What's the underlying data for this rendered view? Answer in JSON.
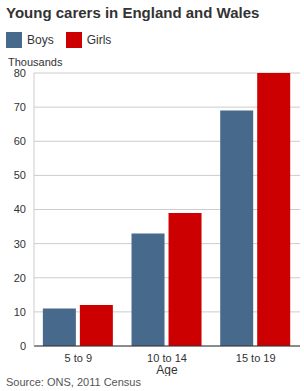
{
  "chart_data": {
    "type": "bar",
    "title": "Young carers in England and Wales",
    "y_label": "Thousands",
    "x_label": "Age",
    "source": "Source: ONS, 2011 Census",
    "categories": [
      "5 to 9",
      "10 to 14",
      "15 to 19"
    ],
    "series": [
      {
        "name": "Boys",
        "color": "#46698c",
        "values": [
          11,
          33,
          69
        ]
      },
      {
        "name": "Girls",
        "color": "#cc0000",
        "values": [
          12,
          39,
          80
        ]
      }
    ],
    "ylim": [
      0,
      80
    ],
    "yticks": [
      0,
      10,
      20,
      30,
      40,
      50,
      60,
      70,
      80
    ],
    "grid": true
  }
}
